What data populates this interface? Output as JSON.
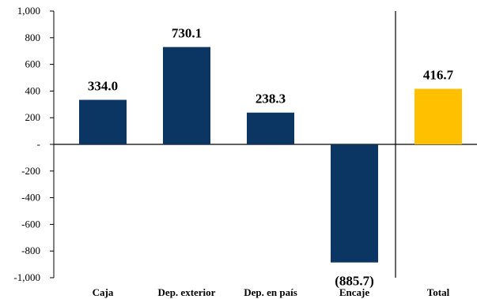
{
  "chart_data": {
    "type": "bar",
    "categories": [
      "Caja",
      "Dep. exterior",
      "Dep. en país",
      "Encaje",
      "Total"
    ],
    "values": [
      334.0,
      730.1,
      238.3,
      -885.7,
      416.7
    ],
    "data_labels": [
      "334.0",
      "730.1",
      "238.3",
      "(885.7)",
      "416.7"
    ],
    "colors": [
      "#0b3664",
      "#0b3664",
      "#0b3664",
      "#0b3664",
      "#ffc000"
    ],
    "ylim": [
      -1000,
      1000
    ],
    "yticks": [
      1000,
      800,
      600,
      400,
      200,
      0,
      -200,
      -400,
      -600,
      -800,
      -1000
    ],
    "ytick_labels": [
      "1,000",
      "800",
      "600",
      "400",
      "200",
      "-",
      "-200",
      "-400",
      "-600",
      "-800",
      "-1,000"
    ],
    "grid": false,
    "title": "",
    "xlabel": "",
    "ylabel": ""
  }
}
